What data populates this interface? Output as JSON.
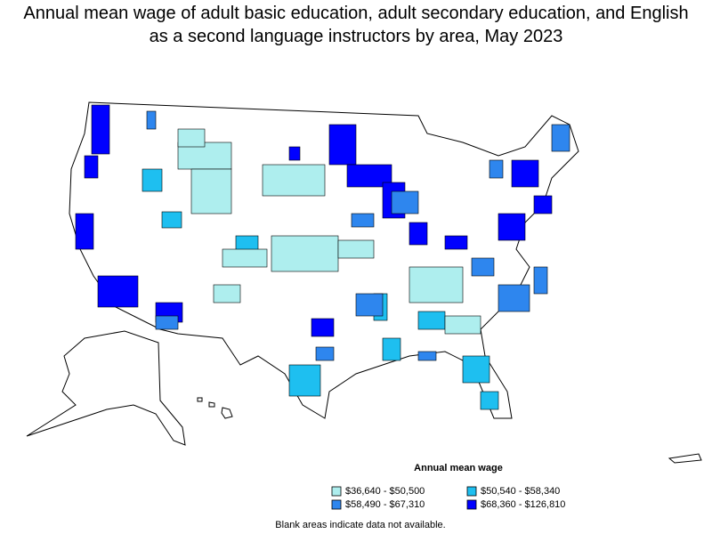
{
  "title": "Annual mean wage of adult basic education, adult secondary education, and English as a second language instructors by area, May 2023",
  "legend": {
    "title": "Annual mean wage",
    "items": [
      {
        "label": "$36,640 - $50,500",
        "color": "#aeeeee"
      },
      {
        "label": "$50,540 - $58,340",
        "color": "#1ebff0"
      },
      {
        "label": "$58,490 - $67,310",
        "color": "#2e86ee"
      },
      {
        "label": "$68,360 - $126,810",
        "color": "#0000ff"
      }
    ]
  },
  "note": "Blank areas indicate data not available."
}
